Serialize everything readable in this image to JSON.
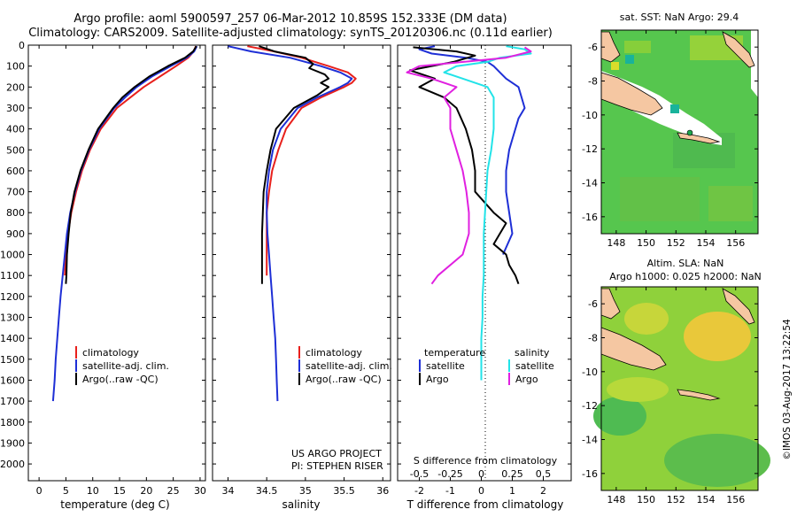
{
  "title": {
    "line1": "Argo profile: aoml 5900597_257 06-Mar-2012 10.859S 152.333E (DM data)",
    "line2": "Climatology: CARS2009. Satellite-adjusted climatology: synTS_20120306.nc (0.11d earlier)"
  },
  "depth_ticks": [
    "0",
    "100",
    "200",
    "300",
    "400",
    "500",
    "600",
    "700",
    "800",
    "900",
    "1000",
    "1100",
    "1200",
    "1300",
    "1400",
    "1500",
    "1600",
    "1700",
    "1800",
    "1900",
    "2000"
  ],
  "colors": {
    "climatology": "#e8201c",
    "satellite": "#1e2fd6",
    "argo": "#000000",
    "sat_salinity": "#22e3e8",
    "argo_salinity": "#e020e0"
  },
  "chart_data": [
    {
      "type": "line",
      "name": "temperature",
      "xlabel": "temperature (deg C)",
      "xlim": [
        -2,
        31
      ],
      "ylim": [
        0,
        2080
      ],
      "ylabel": "depth",
      "x_ticks": [
        "0",
        "5",
        "10",
        "15",
        "20",
        "25",
        "30"
      ],
      "legend": [
        "climatology",
        "satellite-adj. clim.",
        "Argo(..raw -QC)"
      ],
      "series": [
        {
          "name": "climatology",
          "depth": [
            5,
            30,
            60,
            100,
            150,
            200,
            250,
            300,
            400,
            500,
            600,
            700,
            800,
            900,
            1000,
            1100
          ],
          "values": [
            29.2,
            28.8,
            27.8,
            25.5,
            22.5,
            19.5,
            17.0,
            14.5,
            11.5,
            9.5,
            8.0,
            6.9,
            6.0,
            5.4,
            5.0,
            4.8
          ]
        },
        {
          "name": "satellite-adj. clim.",
          "depth": [
            5,
            30,
            60,
            100,
            150,
            200,
            250,
            300,
            400,
            500,
            600,
            700,
            800,
            900,
            1000,
            1100,
            1200,
            1300,
            1400,
            1500,
            1600,
            1700
          ],
          "values": [
            29.4,
            28.9,
            27.5,
            24.5,
            21.0,
            18.2,
            16.0,
            14.0,
            11.2,
            9.3,
            7.8,
            6.7,
            5.8,
            5.2,
            4.8,
            4.4,
            4.0,
            3.7,
            3.4,
            3.1,
            2.9,
            2.6
          ]
        },
        {
          "name": "Argo(..raw -QC)",
          "depth": [
            5,
            30,
            60,
            100,
            150,
            200,
            250,
            300,
            400,
            500,
            600,
            700,
            800,
            900,
            1000,
            1100,
            1140
          ],
          "values": [
            29.3,
            28.7,
            27.2,
            24.0,
            20.5,
            17.8,
            15.5,
            13.8,
            11.0,
            9.2,
            7.7,
            6.6,
            5.9,
            5.5,
            5.2,
            5.1,
            5.0
          ]
        }
      ]
    },
    {
      "type": "line",
      "name": "salinity",
      "xlabel": "salinity",
      "xlim": [
        33.8,
        36.1
      ],
      "ylim": [
        0,
        2080
      ],
      "x_ticks": [
        "34",
        "34.5",
        "35",
        "35.5",
        "36"
      ],
      "legend": [
        "climatology",
        "satellite-adj. clim.",
        "Argo(..raw -QC)"
      ],
      "annotation_lines": [
        "US ARGO PROJECT",
        "PI: STEPHEN RISER"
      ],
      "series": [
        {
          "name": "climatology",
          "depth": [
            5,
            30,
            60,
            100,
            130,
            160,
            180,
            200,
            250,
            300,
            400,
            500,
            600,
            700,
            800,
            900,
            1000,
            1100
          ],
          "values": [
            34.25,
            34.6,
            34.95,
            35.3,
            35.55,
            35.65,
            35.6,
            35.5,
            35.2,
            34.95,
            34.75,
            34.65,
            34.57,
            34.53,
            34.5,
            34.5,
            34.5,
            34.5
          ]
        },
        {
          "name": "satellite-adj. clim.",
          "depth": [
            5,
            30,
            60,
            100,
            130,
            160,
            180,
            200,
            250,
            300,
            400,
            500,
            600,
            700,
            800,
            900,
            1000,
            1100,
            1200,
            1300,
            1400,
            1500,
            1600,
            1700
          ],
          "values": [
            34.0,
            34.3,
            34.8,
            35.2,
            35.45,
            35.6,
            35.55,
            35.45,
            35.15,
            34.9,
            34.68,
            34.58,
            34.53,
            34.5,
            34.5,
            34.51,
            34.53,
            34.55,
            34.57,
            34.59,
            34.61,
            34.62,
            34.63,
            34.64
          ]
        },
        {
          "name": "Argo(..raw -QC)",
          "depth": [
            5,
            30,
            60,
            90,
            110,
            140,
            160,
            180,
            200,
            240,
            300,
            400,
            500,
            600,
            700,
            800,
            900,
            1000,
            1100,
            1140
          ],
          "values": [
            34.4,
            34.6,
            35.0,
            35.1,
            35.05,
            35.25,
            35.3,
            35.2,
            35.3,
            35.15,
            34.85,
            34.62,
            34.55,
            34.5,
            34.46,
            34.45,
            34.44,
            34.44,
            34.44,
            34.44
          ]
        }
      ]
    },
    {
      "type": "line",
      "name": "differences",
      "xlabel": "T difference from climatology",
      "xlabel_top": "S difference from climatology",
      "xlim": [
        -2.7,
        2.9
      ],
      "ylim": [
        0,
        2080
      ],
      "x_ticks_T": [
        "-2",
        "-1",
        "0",
        "1",
        "2"
      ],
      "x_ticks_S": [
        "-0.5",
        "-0.25",
        "0",
        "0.25",
        "0.5"
      ],
      "legend_headers": [
        "temperature",
        "salinity"
      ],
      "legend": [
        "satellite",
        "Argo",
        "satellite",
        "Argo"
      ],
      "series": [
        {
          "name": "temperature satellite",
          "depth": [
            5,
            20,
            40,
            60,
            80,
            100,
            130,
            160,
            200,
            250,
            300,
            350,
            400,
            450,
            500,
            600,
            700,
            800,
            900,
            1000
          ],
          "values": [
            -1.5,
            -2.0,
            -1.6,
            -0.5,
            0.2,
            0.4,
            0.6,
            0.8,
            1.2,
            1.3,
            1.4,
            1.2,
            1.1,
            1.0,
            0.9,
            0.8,
            0.8,
            0.9,
            1.0,
            0.7
          ]
        },
        {
          "name": "temperature Argo",
          "depth": [
            10,
            30,
            50,
            80,
            120,
            160,
            200,
            250,
            300,
            400,
            500,
            600,
            700,
            800,
            850,
            900,
            950,
            1000,
            1050,
            1100,
            1140
          ],
          "values": [
            -2.2,
            -0.8,
            -0.2,
            -0.9,
            -2.3,
            -1.5,
            -2.0,
            -1.2,
            -0.8,
            -0.5,
            -0.3,
            -0.2,
            -0.2,
            0.4,
            0.8,
            0.6,
            0.4,
            0.8,
            0.9,
            1.1,
            1.2
          ]
        },
        {
          "name": "salinity satellite",
          "depth": [
            5,
            20,
            40,
            60,
            80,
            100,
            130,
            160,
            200,
            250,
            300,
            400,
            500,
            600,
            700,
            800,
            900,
            1000,
            1100,
            1200,
            1300,
            1400,
            1500,
            1600
          ],
          "values": [
            0.2,
            0.35,
            0.4,
            0.15,
            0.05,
            -0.2,
            -0.3,
            -0.15,
            0.05,
            0.1,
            0.1,
            0.1,
            0.08,
            0.05,
            0.04,
            0.03,
            0.02,
            0.02,
            0.02,
            0.01,
            0.01,
            0.0,
            0.0,
            0.0
          ]
        },
        {
          "name": "salinity Argo",
          "depth": [
            10,
            30,
            60,
            100,
            130,
            160,
            200,
            250,
            300,
            400,
            500,
            600,
            700,
            800,
            900,
            1000,
            1100,
            1140
          ],
          "values": [
            0.35,
            0.4,
            0.2,
            -0.5,
            -0.6,
            -0.4,
            -0.2,
            -0.3,
            -0.25,
            -0.25,
            -0.2,
            -0.15,
            -0.12,
            -0.1,
            -0.1,
            -0.15,
            -0.35,
            -0.4
          ]
        }
      ]
    }
  ],
  "map1": {
    "title": "sat. SST: NaN Argo: 29.4",
    "lat_ticks": [
      "-6",
      "-8",
      "-10",
      "-12",
      "-14",
      "-16"
    ],
    "lon_ticks": [
      "148",
      "150",
      "152",
      "154",
      "156"
    ]
  },
  "map2": {
    "title1": "Altim. SLA: NaN",
    "title2": "Argo h1000: 0.025 h2000: NaN",
    "lat_ticks": [
      "-6",
      "-8",
      "-10",
      "-12",
      "-14",
      "-16"
    ],
    "lon_ticks": [
      "148",
      "150",
      "152",
      "154",
      "156"
    ]
  },
  "credit": "©IMOS 03-Aug-2017 13:22:54"
}
